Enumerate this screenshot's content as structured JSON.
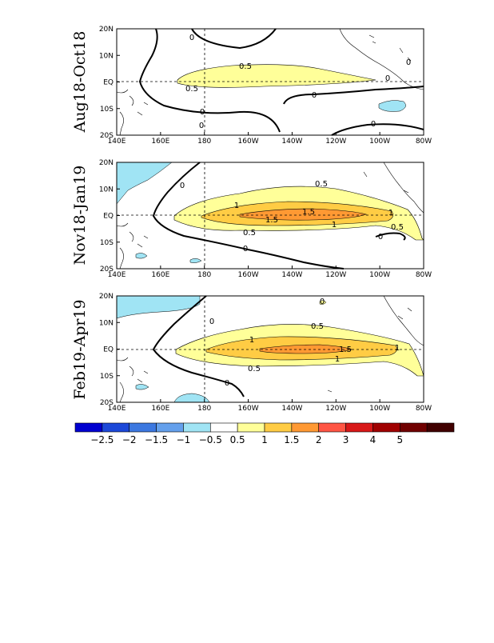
{
  "panels": [
    {
      "period": "Aug18-Oct18",
      "contour_labels": [
        "0",
        "0.5",
        "0.5",
        "0",
        "0",
        "0",
        "0",
        "0",
        "0"
      ]
    },
    {
      "period": "Nov18-Jan19",
      "contour_labels": [
        "0.5",
        "1",
        "1.5",
        "1.5",
        "1",
        "1",
        "0.5",
        "0.5",
        "0",
        "0",
        "0"
      ]
    },
    {
      "period": "Feb19-Apr19",
      "contour_labels": [
        "0.5",
        "1",
        "1.5",
        "1",
        "1",
        "0.5",
        "0",
        "0",
        "0"
      ]
    }
  ],
  "axes": {
    "lon_ticks": [
      "140E",
      "160E",
      "180",
      "160W",
      "140W",
      "120W",
      "100W",
      "80W"
    ],
    "lat_ticks": [
      "20N",
      "10N",
      "EQ",
      "10S",
      "20S"
    ]
  },
  "colorbar": {
    "labels": [
      "-2.5",
      "-2",
      "-1.5",
      "-1",
      "-0.5",
      "0.5",
      "1",
      "1.5",
      "2",
      "3",
      "4",
      "5"
    ],
    "colors": [
      "#0000d0",
      "#1c48d8",
      "#3c78e0",
      "#64a0ec",
      "#a0e4f4",
      "#ffffff",
      "#ffff99",
      "#ffcc44",
      "#ff9933",
      "#ff5544",
      "#d81818",
      "#a00000",
      "#700000",
      "#400000"
    ]
  }
}
